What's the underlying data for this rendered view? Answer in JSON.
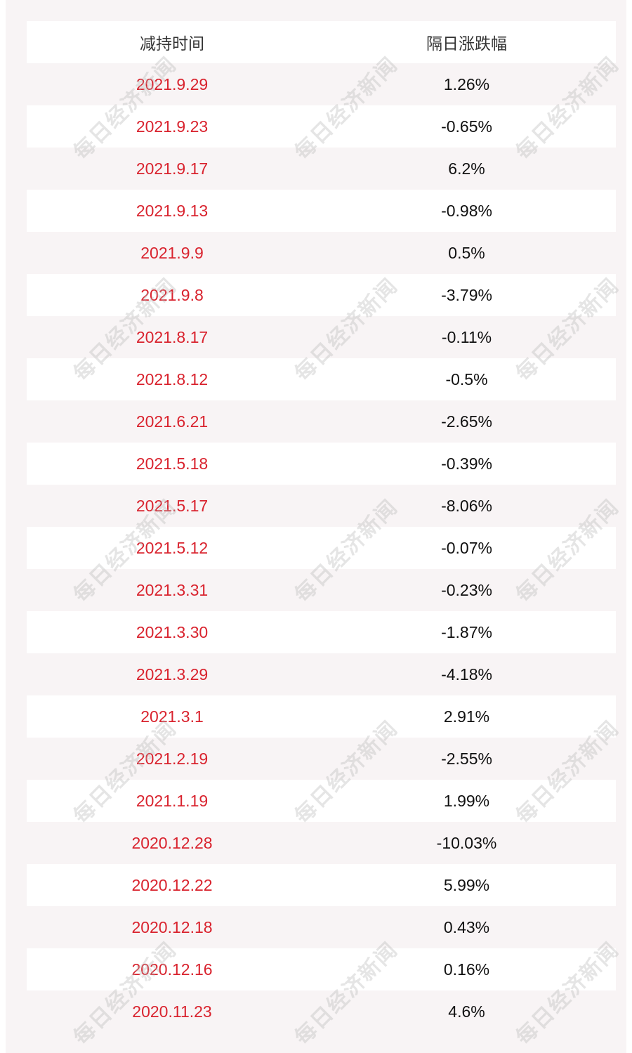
{
  "table": {
    "header": [
      "减持时间",
      "隔日涨跌幅"
    ],
    "rows": [
      [
        "2021.9.29",
        "1.26%"
      ],
      [
        "2021.9.23",
        "-0.65%"
      ],
      [
        "2021.9.17",
        "6.2%"
      ],
      [
        "2021.9.13",
        "-0.98%"
      ],
      [
        "2021.9.9",
        "0.5%"
      ],
      [
        "2021.9.8",
        "-3.79%"
      ],
      [
        "2021.8.17",
        "-0.11%"
      ],
      [
        "2021.8.12",
        "-0.5%"
      ],
      [
        "2021.6.21",
        "-2.65%"
      ],
      [
        "2021.5.18",
        "-0.39%"
      ],
      [
        "2021.5.17",
        "-8.06%"
      ],
      [
        "2021.5.12",
        "-0.07%"
      ],
      [
        "2021.3.31",
        "-0.23%"
      ],
      [
        "2021.3.30",
        "-1.87%"
      ],
      [
        "2021.3.29",
        "-4.18%"
      ],
      [
        "2021.3.1",
        "2.91%"
      ],
      [
        "2021.2.19",
        "-2.55%"
      ],
      [
        "2021.1.19",
        "1.99%"
      ],
      [
        "2020.12.28",
        "-10.03%"
      ],
      [
        "2020.12.22",
        "5.99%"
      ],
      [
        "2020.12.18",
        "0.43%"
      ],
      [
        "2020.12.16",
        "0.16%"
      ],
      [
        "2020.11.23",
        "4.6%"
      ]
    ]
  },
  "watermark": "每日经济新闻"
}
